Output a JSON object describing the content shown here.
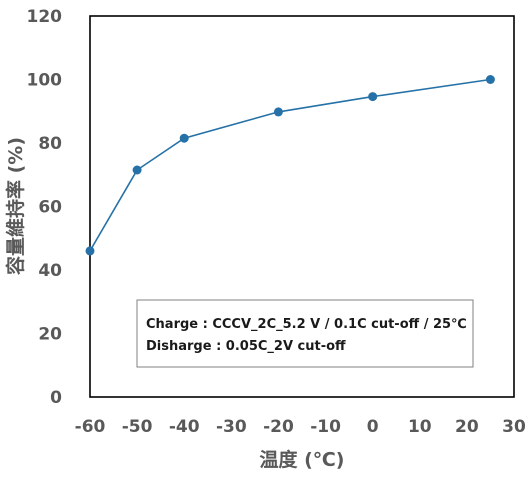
{
  "chart_data": {
    "type": "line",
    "x": [
      -60,
      -50,
      -40,
      -20,
      0,
      25
    ],
    "series": [
      {
        "values": [
          46,
          71.5,
          81.5,
          89.8,
          94.6,
          100
        ],
        "color": "#2672A8"
      }
    ],
    "xlabel": "温度 (℃)",
    "ylabel": "容量維持率 (%)",
    "xlim": [
      -60,
      30
    ],
    "ylim": [
      0,
      120
    ],
    "xticks": [
      "-60",
      "-50",
      "-40",
      "-30",
      "-20",
      "-10",
      "0",
      "10",
      "20",
      "30"
    ],
    "yticks": [
      "0",
      "20",
      "40",
      "60",
      "80",
      "100",
      "120"
    ],
    "grid": false,
    "annotation": {
      "line1": "Charge : CCCV_2C_5.2 V / 0.1C cut-off / 25℃",
      "line2": "Disharge : 0.05C_2V cut-off"
    }
  }
}
